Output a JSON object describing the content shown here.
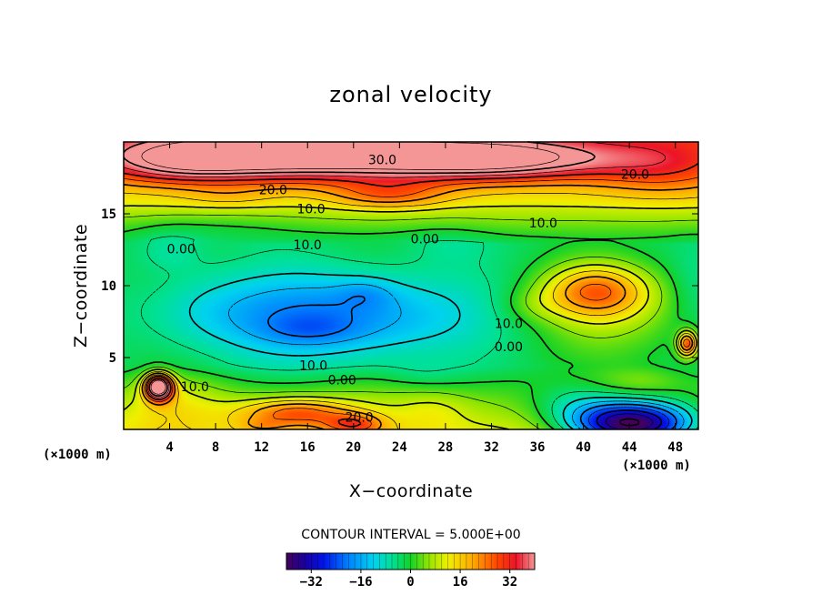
{
  "chart_data": {
    "type": "heatmap",
    "title": "zonal velocity",
    "xlabel": "X−coordinate",
    "ylabel": "Z−coordinate",
    "x_unit": "(×1000 m)",
    "y_unit": "(×1000 m)",
    "xlim": [
      0,
      50
    ],
    "ylim": [
      0,
      20
    ],
    "x_ticks": [
      4,
      8,
      12,
      16,
      20,
      24,
      28,
      32,
      36,
      40,
      44,
      48
    ],
    "y_ticks": [
      5,
      10,
      15
    ],
    "contour_interval_label": "CONTOUR INTERVAL = 5.000E+00",
    "colorbar": {
      "min": -40,
      "max": 40,
      "ticks": [
        -32,
        -16,
        0,
        16,
        32
      ]
    },
    "contour_labels": [
      {
        "text": "30.0",
        "x": 22.5,
        "y": 18.7
      },
      {
        "text": "20.0",
        "x": 44.5,
        "y": 17.7
      },
      {
        "text": "20.0",
        "x": 13.0,
        "y": 16.6
      },
      {
        "text": "10.0",
        "x": 16.3,
        "y": 15.3
      },
      {
        "text": "10.0",
        "x": 36.5,
        "y": 14.3
      },
      {
        "text": "0.00",
        "x": 5.0,
        "y": 12.5
      },
      {
        "text": "10.0",
        "x": 16.0,
        "y": 12.8
      },
      {
        "text": "0.00",
        "x": 26.2,
        "y": 13.2
      },
      {
        "text": "10.0",
        "x": 33.5,
        "y": 7.3
      },
      {
        "text": "0.00",
        "x": 33.5,
        "y": 5.7
      },
      {
        "text": "10.0",
        "x": 16.5,
        "y": 4.4
      },
      {
        "text": "0.00",
        "x": 19.0,
        "y": 3.4
      },
      {
        "text": "10.0",
        "x": 6.2,
        "y": 2.9
      },
      {
        "text": "20.0",
        "x": 20.5,
        "y": 0.8
      }
    ],
    "features": [
      {
        "x": 13,
        "y": 19.0,
        "sx": 14,
        "sy": 1.6,
        "v": 32
      },
      {
        "x": 32,
        "y": 18.8,
        "sx": 11,
        "sy": 1.4,
        "v": 28
      },
      {
        "x": 5,
        "y": 18.5,
        "sx": 6,
        "sy": 1.4,
        "v": 10
      },
      {
        "x": 47,
        "y": 18.2,
        "sx": 6,
        "sy": 2.0,
        "v": 10
      },
      {
        "x": 23,
        "y": 16.4,
        "sx": 5,
        "sy": 1.0,
        "v": 12
      },
      {
        "x": 9,
        "y": 16.2,
        "sx": 4,
        "sy": 0.8,
        "v": 4
      },
      {
        "x": 18,
        "y": 8.0,
        "sx": 12,
        "sy": 3.0,
        "v": -18
      },
      {
        "x": 16,
        "y": 7.0,
        "sx": 4,
        "sy": 1.0,
        "v": -5
      },
      {
        "x": 21,
        "y": 9.5,
        "sx": 2.5,
        "sy": 1.0,
        "v": -5
      },
      {
        "x": 7,
        "y": 8.5,
        "sx": 5,
        "sy": 2.5,
        "v": -3
      },
      {
        "x": 4,
        "y": 12.5,
        "sx": 3,
        "sy": 1.5,
        "v": -5
      },
      {
        "x": 28,
        "y": 13.0,
        "sx": 4,
        "sy": 1.5,
        "v": -3
      },
      {
        "x": 8,
        "y": 14.2,
        "sx": 8,
        "sy": 1.0,
        "v": -3
      },
      {
        "x": 41,
        "y": 9.7,
        "sx": 4.5,
        "sy": 1.8,
        "v": 22
      },
      {
        "x": 42,
        "y": 8.2,
        "sx": 7.0,
        "sy": 3.0,
        "v": 8
      },
      {
        "x": 35.5,
        "y": 8.7,
        "sx": 3.0,
        "sy": 1.2,
        "v": 4
      },
      {
        "x": 49,
        "y": 6.0,
        "sx": 0.9,
        "sy": 0.9,
        "v": 30
      },
      {
        "x": 49.5,
        "y": 10.0,
        "sx": 2,
        "sy": 3,
        "v": -3
      },
      {
        "x": 44,
        "y": 0.4,
        "sx": 5.5,
        "sy": 1.6,
        "v": -52
      },
      {
        "x": 39,
        "y": 2.0,
        "sx": 4,
        "sy": 1.5,
        "v": -8
      },
      {
        "x": 3,
        "y": 3.0,
        "sx": 1.2,
        "sy": 0.9,
        "v": 50
      },
      {
        "x": 4,
        "y": 2.0,
        "sx": 4,
        "sy": 1.8,
        "v": 6
      },
      {
        "x": 15,
        "y": 1.2,
        "sx": 5,
        "sy": 1.0,
        "v": 20
      },
      {
        "x": 20,
        "y": 0.4,
        "sx": 2.5,
        "sy": 0.7,
        "v": 16
      },
      {
        "x": 12,
        "y": 0.3,
        "sx": 2,
        "sy": 0.5,
        "v": 6
      },
      {
        "x": 27,
        "y": 1.5,
        "sx": 3,
        "sy": 1.2,
        "v": 4
      },
      {
        "x": 26,
        "y": 3.8,
        "sx": 3.5,
        "sy": 1.0,
        "v": -3
      },
      {
        "x": 45,
        "y": 3.5,
        "sx": 3.5,
        "sy": 1.0,
        "v": 4
      }
    ]
  }
}
